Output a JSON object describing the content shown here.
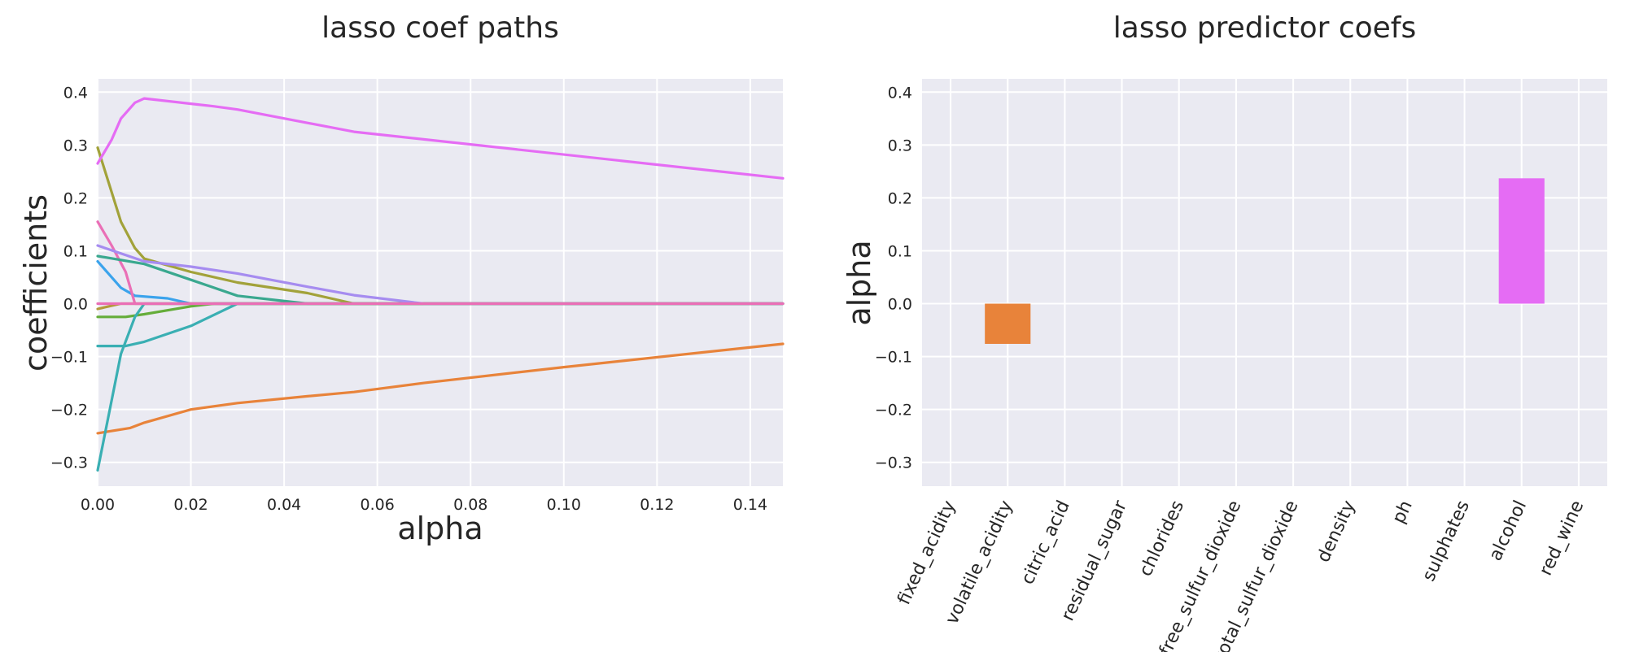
{
  "chart_data": [
    {
      "type": "line",
      "title": "lasso coef paths",
      "xlabel": "alpha",
      "ylabel": "coefficients",
      "xlim": [
        0,
        0.147
      ],
      "ylim": [
        -0.345,
        0.425
      ],
      "xticks": [
        0.0,
        0.02,
        0.04,
        0.06,
        0.08,
        0.1,
        0.12,
        0.14
      ],
      "xtick_labels": [
        "0.00",
        "0.02",
        "0.04",
        "0.06",
        "0.08",
        "0.10",
        "0.12",
        "0.14"
      ],
      "yticks": [
        0.4,
        0.3,
        0.2,
        0.1,
        0.0,
        -0.1,
        -0.2,
        -0.3
      ],
      "ytick_labels": [
        "0.4",
        "0.3",
        "0.2",
        "0.1",
        "0.0",
        "−0.1",
        "−0.2",
        "−0.3"
      ],
      "grid": true,
      "series": [
        {
          "name": "fixed_acidity",
          "color": "#3ba3ec",
          "x": [
            0,
            0.005,
            0.008,
            0.015,
            0.02,
            0.147
          ],
          "y": [
            0.08,
            0.03,
            0.015,
            0.01,
            0.0,
            0.0
          ]
        },
        {
          "name": "volatile_acidity",
          "color": "#e8833a",
          "x": [
            0,
            0.007,
            0.01,
            0.02,
            0.03,
            0.045,
            0.055,
            0.07,
            0.1,
            0.147
          ],
          "y": [
            -0.245,
            -0.235,
            -0.225,
            -0.2,
            -0.188,
            -0.175,
            -0.167,
            -0.15,
            -0.12,
            -0.076
          ]
        },
        {
          "name": "citric_acid",
          "color": "#ea6fb6",
          "x": [
            0,
            0.003,
            0.006,
            0.008,
            0.147
          ],
          "y": [
            0.155,
            0.11,
            0.06,
            0.0,
            0.0
          ]
        },
        {
          "name": "residual_sugar",
          "color": "#a2a23a",
          "x": [
            0,
            0.005,
            0.008,
            0.01,
            0.02,
            0.03,
            0.045,
            0.055,
            0.147
          ],
          "y": [
            0.295,
            0.155,
            0.105,
            0.085,
            0.06,
            0.04,
            0.02,
            0.0,
            0.0
          ]
        },
        {
          "name": "chlorides",
          "color": "#65ad3a",
          "x": [
            0,
            0.006,
            0.01,
            0.02,
            0.025,
            0.147
          ],
          "y": [
            -0.025,
            -0.025,
            -0.02,
            -0.005,
            0.0,
            0.0
          ]
        },
        {
          "name": "free_sulfur_dioxide",
          "color": "#3aa88f",
          "x": [
            0,
            0.01,
            0.02,
            0.03,
            0.045,
            0.147
          ],
          "y": [
            0.09,
            0.075,
            0.045,
            0.015,
            0.0,
            0.0
          ]
        },
        {
          "name": "total_sulfur_dioxide",
          "color": "#3aafb3",
          "x": [
            0,
            0.005,
            0.008,
            0.01,
            0.02,
            0.03,
            0.147
          ],
          "y": [
            -0.315,
            -0.095,
            -0.025,
            0.0,
            0.0,
            0.0,
            0.0
          ]
        },
        {
          "name": "density",
          "color": "#3aafb3",
          "x": [
            0,
            0.006,
            0.01,
            0.02,
            0.03,
            0.147
          ],
          "y": [
            -0.08,
            -0.08,
            -0.072,
            -0.042,
            0.0,
            0.0
          ]
        },
        {
          "name": "ph",
          "color": "#b39a3a",
          "x": [
            0,
            0.005,
            0.008,
            0.147
          ],
          "y": [
            -0.01,
            0.0,
            0.0,
            0.0
          ]
        },
        {
          "name": "sulphates",
          "color": "#a68cf0",
          "x": [
            0,
            0.01,
            0.02,
            0.03,
            0.045,
            0.055,
            0.07,
            0.147
          ],
          "y": [
            0.11,
            0.08,
            0.07,
            0.057,
            0.032,
            0.016,
            0.0,
            0.0
          ]
        },
        {
          "name": "alcohol",
          "color": "#e56cf4",
          "x": [
            0,
            0.003,
            0.005,
            0.008,
            0.01,
            0.02,
            0.025,
            0.03,
            0.055,
            0.147
          ],
          "y": [
            0.265,
            0.31,
            0.35,
            0.38,
            0.388,
            0.378,
            0.373,
            0.367,
            0.325,
            0.237
          ]
        },
        {
          "name": "red_wine",
          "color": "#ea6fb6",
          "x": [
            0,
            0.147
          ],
          "y": [
            0.0,
            0.0
          ]
        }
      ]
    },
    {
      "type": "bar",
      "title": "lasso predictor coefs",
      "xlabel": "",
      "ylabel": "alpha",
      "ylim": [
        -0.345,
        0.425
      ],
      "yticks": [
        0.4,
        0.3,
        0.2,
        0.1,
        0.0,
        -0.1,
        -0.2,
        -0.3
      ],
      "ytick_labels": [
        "0.4",
        "0.3",
        "0.2",
        "0.1",
        "0.0",
        "−0.1",
        "−0.2",
        "−0.3"
      ],
      "grid": true,
      "categories": [
        "fixed_acidity",
        "volatile_acidity",
        "citric_acid",
        "residual_sugar",
        "chlorides",
        "free_sulfur_dioxide",
        "total_sulfur_dioxide",
        "density",
        "ph",
        "sulphates",
        "alcohol",
        "red_wine"
      ],
      "values": [
        0.0,
        -0.076,
        0.0,
        0.0,
        0.0,
        0.0,
        0.0,
        0.0,
        0.0,
        0.0,
        0.237,
        0.0
      ],
      "colors": [
        "#3ba3ec",
        "#e8833a",
        "#ea6fb6",
        "#a2a23a",
        "#65ad3a",
        "#3aa88f",
        "#3aafb3",
        "#3aafb3",
        "#b39a3a",
        "#a68cf0",
        "#e56cf4",
        "#ea6fb6"
      ]
    }
  ]
}
